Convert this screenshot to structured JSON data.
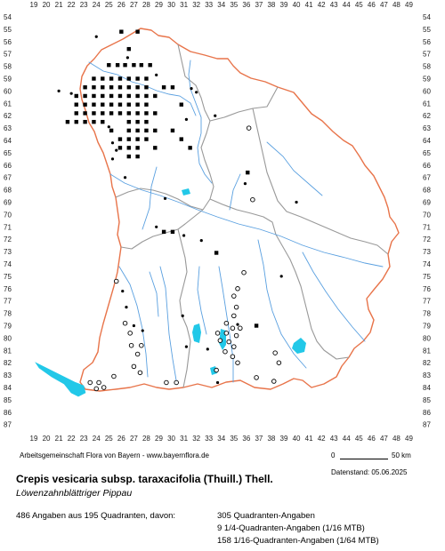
{
  "grid": {
    "x_labels": [
      "19",
      "20",
      "21",
      "22",
      "23",
      "24",
      "25",
      "26",
      "27",
      "28",
      "29",
      "30",
      "31",
      "32",
      "33",
      "34",
      "35",
      "36",
      "37",
      "38",
      "39",
      "40",
      "41",
      "42",
      "43",
      "44",
      "45",
      "46",
      "47",
      "48",
      "49"
    ],
    "y_labels": [
      "54",
      "55",
      "56",
      "57",
      "58",
      "59",
      "60",
      "61",
      "62",
      "63",
      "64",
      "65",
      "66",
      "67",
      "68",
      "69",
      "70",
      "71",
      "72",
      "73",
      "74",
      "75",
      "76",
      "77",
      "78",
      "79",
      "80",
      "81",
      "82",
      "83",
      "84",
      "85",
      "86",
      "87"
    ]
  },
  "colors": {
    "state_border": "#e8744a",
    "region_border": "#999999",
    "rivers": "#5aa0e0",
    "lakes": "#22c8e8",
    "markers": "#000000"
  },
  "legend_marker_types": [
    "filled-square",
    "filled-dot",
    "open-circle"
  ],
  "occurrences": {
    "squares": [
      [
        26.0,
        55.2
      ],
      [
        27.3,
        55.2
      ],
      [
        26.6,
        56.6
      ],
      [
        25.0,
        57.9
      ],
      [
        25.7,
        57.9
      ],
      [
        26.3,
        57.9
      ],
      [
        27.0,
        57.9
      ],
      [
        27.6,
        57.9
      ],
      [
        28.3,
        57.9
      ],
      [
        23.8,
        59.0
      ],
      [
        24.5,
        59.0
      ],
      [
        25.2,
        59.0
      ],
      [
        25.9,
        59.0
      ],
      [
        26.6,
        59.0
      ],
      [
        27.3,
        59.0
      ],
      [
        28.0,
        59.0
      ],
      [
        23.1,
        59.7
      ],
      [
        23.8,
        59.7
      ],
      [
        24.5,
        59.7
      ],
      [
        25.2,
        59.7
      ],
      [
        25.9,
        59.7
      ],
      [
        26.6,
        59.7
      ],
      [
        27.3,
        59.7
      ],
      [
        28.0,
        59.7
      ],
      [
        29.4,
        59.7
      ],
      [
        30.1,
        59.7
      ],
      [
        22.4,
        60.4
      ],
      [
        23.1,
        60.4
      ],
      [
        23.8,
        60.4
      ],
      [
        24.5,
        60.4
      ],
      [
        25.2,
        60.4
      ],
      [
        25.9,
        60.4
      ],
      [
        26.6,
        60.4
      ],
      [
        27.3,
        60.4
      ],
      [
        28.0,
        60.4
      ],
      [
        28.7,
        60.4
      ],
      [
        22.4,
        61.1
      ],
      [
        23.1,
        61.1
      ],
      [
        23.8,
        61.1
      ],
      [
        24.5,
        61.1
      ],
      [
        25.2,
        61.1
      ],
      [
        25.9,
        61.1
      ],
      [
        26.6,
        61.1
      ],
      [
        27.3,
        61.1
      ],
      [
        28.0,
        61.1
      ],
      [
        30.8,
        61.1
      ],
      [
        22.4,
        61.8
      ],
      [
        23.1,
        61.8
      ],
      [
        23.8,
        61.8
      ],
      [
        24.5,
        61.8
      ],
      [
        25.2,
        61.8
      ],
      [
        25.9,
        61.8
      ],
      [
        26.6,
        61.8
      ],
      [
        27.3,
        61.8
      ],
      [
        28.0,
        61.8
      ],
      [
        28.7,
        61.8
      ],
      [
        21.7,
        62.5
      ],
      [
        22.4,
        62.5
      ],
      [
        23.1,
        62.5
      ],
      [
        23.8,
        62.5
      ],
      [
        24.5,
        62.5
      ],
      [
        26.6,
        62.5
      ],
      [
        27.3,
        62.5
      ],
      [
        28.0,
        62.5
      ],
      [
        25.2,
        63.2
      ],
      [
        26.6,
        63.2
      ],
      [
        27.3,
        63.2
      ],
      [
        28.0,
        63.2
      ],
      [
        28.7,
        63.2
      ],
      [
        30.1,
        63.2
      ],
      [
        25.9,
        63.9
      ],
      [
        26.6,
        63.9
      ],
      [
        27.3,
        63.9
      ],
      [
        28.0,
        63.9
      ],
      [
        30.8,
        63.9
      ],
      [
        25.9,
        64.6
      ],
      [
        26.6,
        64.6
      ],
      [
        27.3,
        64.6
      ],
      [
        28.7,
        64.6
      ],
      [
        31.5,
        64.6
      ],
      [
        26.6,
        65.3
      ],
      [
        27.3,
        65.3
      ],
      [
        36.1,
        66.6
      ],
      [
        29.4,
        71.4
      ],
      [
        30.1,
        71.4
      ],
      [
        33.6,
        73.1
      ],
      [
        36.8,
        79.0
      ]
    ],
    "dots": [
      [
        21.0,
        60.0
      ],
      [
        22.0,
        60.2
      ],
      [
        24.0,
        55.6
      ],
      [
        26.5,
        57.3
      ],
      [
        28.8,
        58.7
      ],
      [
        31.6,
        59.8
      ],
      [
        32.0,
        60.1
      ],
      [
        31.2,
        62.3
      ],
      [
        33.5,
        62.0
      ],
      [
        25.0,
        62.9
      ],
      [
        25.3,
        64.2
      ],
      [
        25.6,
        64.8
      ],
      [
        25.3,
        65.5
      ],
      [
        26.3,
        67.0
      ],
      [
        29.5,
        68.7
      ],
      [
        28.8,
        71.0
      ],
      [
        31.0,
        71.7
      ],
      [
        32.4,
        72.1
      ],
      [
        35.9,
        67.5
      ],
      [
        40.0,
        69.0
      ],
      [
        38.8,
        75.0
      ],
      [
        26.1,
        76.2
      ],
      [
        26.4,
        77.5
      ],
      [
        27.0,
        79.0
      ],
      [
        27.7,
        79.4
      ],
      [
        30.9,
        78.2
      ],
      [
        31.2,
        80.7
      ],
      [
        32.9,
        80.9
      ],
      [
        35.3,
        78.9
      ],
      [
        33.7,
        83.6
      ]
    ],
    "circles": [
      [
        25.6,
        75.4
      ],
      [
        26.3,
        78.8
      ],
      [
        26.7,
        79.6
      ],
      [
        26.8,
        80.6
      ],
      [
        27.6,
        80.6
      ],
      [
        27.3,
        81.3
      ],
      [
        27.0,
        82.3
      ],
      [
        27.5,
        82.8
      ],
      [
        25.4,
        83.1
      ],
      [
        23.5,
        83.6
      ],
      [
        24.2,
        83.6
      ],
      [
        24.6,
        84.0
      ],
      [
        24.0,
        84.1
      ],
      [
        29.6,
        83.6
      ],
      [
        30.4,
        83.6
      ],
      [
        36.2,
        63.0
      ],
      [
        36.5,
        68.8
      ],
      [
        35.8,
        74.7
      ],
      [
        35.3,
        76.0
      ],
      [
        35.0,
        76.6
      ],
      [
        35.2,
        77.5
      ],
      [
        35.0,
        78.2
      ],
      [
        34.4,
        78.8
      ],
      [
        34.9,
        79.2
      ],
      [
        35.5,
        79.2
      ],
      [
        33.7,
        79.6
      ],
      [
        34.4,
        79.6
      ],
      [
        35.2,
        79.8
      ],
      [
        33.9,
        80.2
      ],
      [
        34.6,
        80.3
      ],
      [
        35.0,
        80.7
      ],
      [
        34.3,
        81.1
      ],
      [
        34.9,
        81.5
      ],
      [
        35.3,
        82.0
      ],
      [
        33.6,
        82.6
      ],
      [
        38.3,
        81.2
      ],
      [
        38.6,
        82.0
      ],
      [
        36.8,
        83.2
      ],
      [
        38.2,
        83.5
      ]
    ]
  },
  "footer": {
    "left_caption": "Arbeitsgemeinschaft Flora von Bayern - www.bayernflora.de",
    "scale_zero": "0",
    "scale_label": "50 km",
    "date": "Datenstand: 05.06.2025"
  },
  "species": {
    "scientific": "Crepis vesicaria subsp. taraxacifolia (Thuill.) Thell.",
    "common": "Löwenzahnblättriger Pippau"
  },
  "stats": {
    "summary": "486 Angaben aus 195 Quadranten, davon:",
    "line1": "305 Quadranten-Angaben",
    "line2": "9 1/4-Quadranten-Angaben (1/16 MTB)",
    "line3": "158 1/16-Quadranten-Angaben (1/64 MTB)"
  }
}
